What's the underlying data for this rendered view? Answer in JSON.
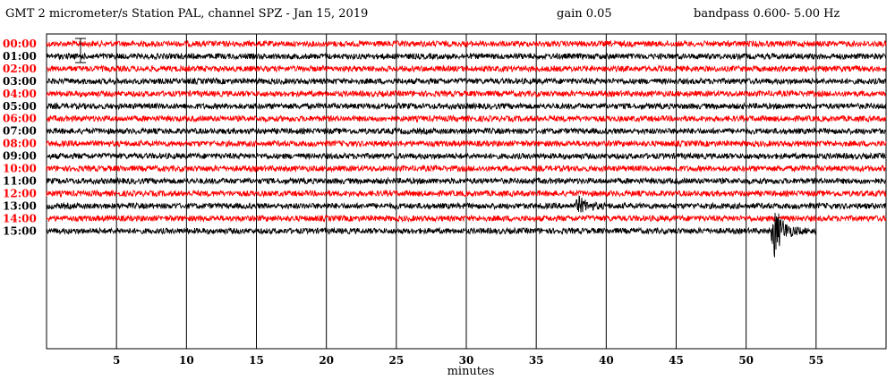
{
  "header": {
    "left": "GMT  2 micrometer/s  Station PAL, channel SPZ  -  Jan 15, 2019",
    "gain": "gain 0.05",
    "bandpass": "bandpass 0.600- 5.00 Hz"
  },
  "chart_data": {
    "type": "line",
    "title": "GMT  2 micrometer/s  Station PAL, channel SPZ  -  Jan 15, 2019",
    "xlabel": "minutes",
    "ylabel": "",
    "xlim": [
      0,
      60
    ],
    "x_ticks": [
      5,
      10,
      15,
      20,
      25,
      30,
      35,
      40,
      45,
      50,
      55
    ],
    "grid": true,
    "colors": {
      "red": "#ff0000",
      "black": "#000000"
    },
    "trace_color_cycle": [
      "red",
      "black"
    ],
    "series": [
      {
        "name": "00:00",
        "color": "red",
        "x_end": 60
      },
      {
        "name": "01:00",
        "color": "black",
        "x_end": 60
      },
      {
        "name": "02:00",
        "color": "red",
        "x_end": 60
      },
      {
        "name": "03:00",
        "color": "black",
        "x_end": 60
      },
      {
        "name": "04:00",
        "color": "red",
        "x_end": 60
      },
      {
        "name": "05:00",
        "color": "black",
        "x_end": 60
      },
      {
        "name": "06:00",
        "color": "red",
        "x_end": 60
      },
      {
        "name": "07:00",
        "color": "black",
        "x_end": 60
      },
      {
        "name": "08:00",
        "color": "red",
        "x_end": 60
      },
      {
        "name": "09:00",
        "color": "black",
        "x_end": 60
      },
      {
        "name": "10:00",
        "color": "red",
        "x_end": 60
      },
      {
        "name": "11:00",
        "color": "black",
        "x_end": 60
      },
      {
        "name": "12:00",
        "color": "red",
        "x_end": 60
      },
      {
        "name": "13:00",
        "color": "black",
        "x_end": 60
      },
      {
        "name": "14:00",
        "color": "red",
        "x_end": 60
      },
      {
        "name": "15:00",
        "color": "black",
        "x_end": 55
      }
    ],
    "events": [
      {
        "trace": "13:00",
        "x": 38,
        "amplitude": "moderate"
      },
      {
        "trace": "15:00",
        "x": 52,
        "amplitude": "large"
      }
    ]
  }
}
